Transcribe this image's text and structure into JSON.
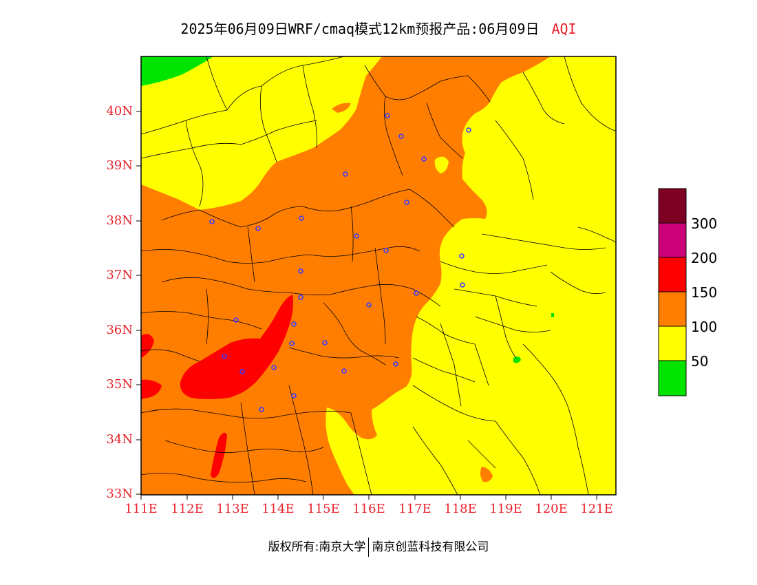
{
  "title": {
    "text": "2025年06月09日WRF/cmaq模式12km预报产品:06月09日",
    "tag": "AQI"
  },
  "map": {
    "lat_labels": [
      "40N",
      "39N",
      "38N",
      "37N",
      "36N",
      "35N",
      "34N",
      "33N"
    ],
    "lon_labels": [
      "111E",
      "112E",
      "113E",
      "114E",
      "115E",
      "116E",
      "117E",
      "118E",
      "119E",
      "120E",
      "121E"
    ],
    "colors": {
      "good": "#00e400",
      "moderate": "#ffff00",
      "unhealthy_sensitive": "#ff7e00",
      "unhealthy": "#ff0000",
      "very_unhealthy": "#cc0077",
      "hazardous": "#7e0023",
      "station": "#3b3bff",
      "border": "#000000"
    }
  },
  "legend": {
    "labels": [
      "300",
      "200",
      "150",
      "100",
      "50"
    ],
    "colors": [
      "#7e0023",
      "#cc0077",
      "#ff0000",
      "#ff7e00",
      "#ffff00",
      "#00e400"
    ]
  },
  "footer": {
    "left": "版权所有:南京大学",
    "right": "南京创蓝科技有限公司"
  }
}
